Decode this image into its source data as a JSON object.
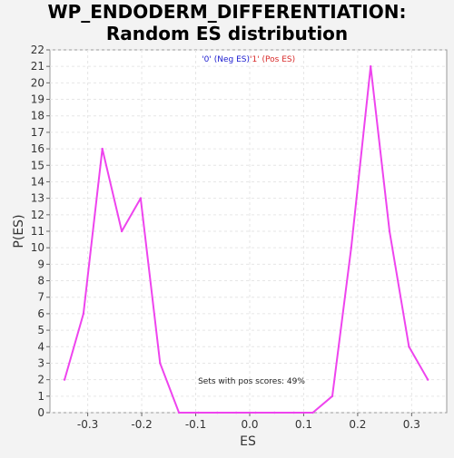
{
  "chart_data": {
    "type": "line",
    "title_line1": "WP_ENDODERM_DIFFERENTIATION:",
    "title_line2": "Random ES distribution",
    "xlabel": "ES",
    "ylabel": "P(ES)",
    "xlim": [
      -0.37,
      0.365
    ],
    "ylim": [
      0,
      22
    ],
    "x_ticks": [
      -0.3,
      -0.2,
      -0.1,
      0.0,
      0.1,
      0.2,
      0.3
    ],
    "x_tick_labels": [
      "-0.3",
      "-0.2",
      "-0.1",
      "0.0",
      "0.1",
      "0.2",
      "0.3"
    ],
    "y_ticks": [
      0,
      1,
      2,
      3,
      4,
      5,
      6,
      7,
      8,
      9,
      10,
      11,
      12,
      13,
      14,
      15,
      16,
      17,
      18,
      19,
      20,
      21,
      22
    ],
    "y_tick_labels": [
      "0",
      "1",
      "2",
      "3",
      "4",
      "5",
      "6",
      "7",
      "8",
      "9",
      "10",
      "11",
      "12",
      "13",
      "14",
      "15",
      "16",
      "17",
      "18",
      "19",
      "20",
      "21",
      "22"
    ],
    "grid": true,
    "legend": [
      {
        "label": "'0' (Neg ES)",
        "color": "#1b1bcf"
      },
      {
        "label": "'1' (Pos ES)",
        "color": "#d82a2a"
      }
    ],
    "annotation": "Sets with pos scores: 49%",
    "series": [
      {
        "color": "#ee44ee",
        "x": [
          -0.343,
          -0.308,
          -0.273,
          -0.237,
          -0.202,
          -0.166,
          -0.131,
          -0.095,
          -0.06,
          -0.025,
          0.011,
          0.046,
          0.082,
          0.117,
          0.153,
          0.188,
          0.224,
          0.259,
          0.295,
          0.33
        ],
        "y": [
          2,
          6,
          16,
          11,
          13,
          3,
          0,
          0,
          0,
          0,
          0,
          0,
          0,
          0,
          1,
          10,
          21,
          11,
          4,
          2
        ]
      }
    ]
  }
}
